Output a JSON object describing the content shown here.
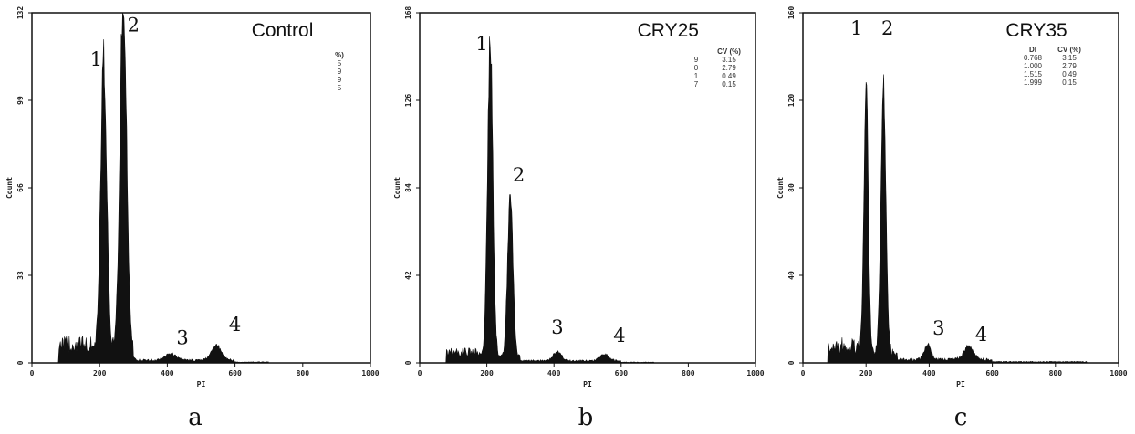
{
  "chart_data": [
    {
      "type": "area",
      "panel_caption": "a",
      "title": "Control",
      "xlabel": "PI",
      "ylabel": "Count",
      "xlim": [
        0,
        1000
      ],
      "ylim": [
        0,
        132
      ],
      "x_ticks": [
        "0",
        "200",
        "400",
        "600",
        "800",
        "1000"
      ],
      "y_ticks": [
        "0",
        "33",
        "66",
        "99",
        "132"
      ],
      "peak_labels": [
        {
          "text": "1",
          "x": 190,
          "y": 112
        },
        {
          "text": "2",
          "x": 300,
          "y": 125
        },
        {
          "text": "3",
          "x": 445,
          "y": 7
        },
        {
          "text": "4",
          "x": 600,
          "y": 12
        }
      ],
      "table": {
        "headers": [
          "",
          "%)"
        ],
        "rows": [
          [
            "",
            "5"
          ],
          [
            "",
            "9"
          ],
          [
            "",
            "9"
          ],
          [
            "",
            "5"
          ]
        ]
      },
      "peaks": [
        {
          "center": 212,
          "height": 110,
          "width": 9
        },
        {
          "center": 270,
          "height": 132,
          "width": 10
        },
        {
          "center": 410,
          "height": 2.5,
          "width": 15
        },
        {
          "center": 545,
          "height": 5.5,
          "width": 15
        }
      ],
      "baseline": [
        {
          "from": 80,
          "to": 180,
          "level": 7
        },
        {
          "from": 180,
          "to": 300,
          "level": 5
        },
        {
          "from": 300,
          "to": 600,
          "level": 1
        },
        {
          "from": 600,
          "to": 700,
          "level": 0.3
        }
      ]
    },
    {
      "type": "area",
      "panel_caption": "b",
      "title": "CRY25",
      "xlabel": "PI",
      "ylabel": "Count",
      "xlim": [
        0,
        1000
      ],
      "ylim": [
        0,
        168
      ],
      "x_ticks": [
        "0",
        "200",
        "400",
        "600",
        "800",
        "1000"
      ],
      "y_ticks": [
        "0",
        "42",
        "84",
        "126",
        "168"
      ],
      "peak_labels": [
        {
          "text": "1",
          "x": 185,
          "y": 150
        },
        {
          "text": "2",
          "x": 295,
          "y": 87
        },
        {
          "text": "3",
          "x": 410,
          "y": 14
        },
        {
          "text": "4",
          "x": 595,
          "y": 10
        }
      ],
      "table": {
        "headers": [
          "",
          "CV (%)"
        ],
        "rows": [
          [
            "9",
            "3.15"
          ],
          [
            "0",
            "2.79"
          ],
          [
            "1",
            "0.49"
          ],
          [
            "7",
            "0.15"
          ]
        ]
      },
      "peaks": [
        {
          "center": 210,
          "height": 150,
          "width": 8
        },
        {
          "center": 270,
          "height": 76,
          "width": 8
        },
        {
          "center": 410,
          "height": 4.5,
          "width": 12
        },
        {
          "center": 550,
          "height": 3,
          "width": 14
        }
      ],
      "baseline": [
        {
          "from": 80,
          "to": 180,
          "level": 5
        },
        {
          "from": 180,
          "to": 300,
          "level": 3
        },
        {
          "from": 300,
          "to": 600,
          "level": 1
        },
        {
          "from": 600,
          "to": 700,
          "level": 0.3
        }
      ]
    },
    {
      "type": "area",
      "panel_caption": "c",
      "title": "CRY35",
      "xlabel": "PI",
      "ylabel": "Count",
      "xlim": [
        0,
        1000
      ],
      "ylim": [
        0,
        160
      ],
      "x_ticks": [
        "0",
        "200",
        "400",
        "600",
        "800",
        "1000"
      ],
      "y_ticks": [
        "0",
        "40",
        "80",
        "120",
        "160"
      ],
      "peak_labels": [
        {
          "text": "1",
          "x": 170,
          "y": 150
        },
        {
          "text": "2",
          "x": 268,
          "y": 150
        },
        {
          "text": "3",
          "x": 430,
          "y": 13
        },
        {
          "text": "4",
          "x": 565,
          "y": 10
        }
      ],
      "table": {
        "headers": [
          "DI",
          "CV (%)"
        ],
        "rows": [
          [
            "0.768",
            "3.15"
          ],
          [
            "1.000",
            "2.79"
          ],
          [
            "1.515",
            "0.49"
          ],
          [
            "1.999",
            "0.15"
          ]
        ]
      },
      "peaks": [
        {
          "center": 200,
          "height": 120,
          "width": 7
        },
        {
          "center": 255,
          "height": 120,
          "width": 8
        },
        {
          "center": 395,
          "height": 7,
          "width": 10
        },
        {
          "center": 525,
          "height": 6,
          "width": 15
        }
      ],
      "baseline": [
        {
          "from": 80,
          "to": 180,
          "level": 8
        },
        {
          "from": 180,
          "to": 300,
          "level": 5
        },
        {
          "from": 300,
          "to": 600,
          "level": 1.5
        },
        {
          "from": 600,
          "to": 900,
          "level": 0.5
        }
      ]
    }
  ]
}
